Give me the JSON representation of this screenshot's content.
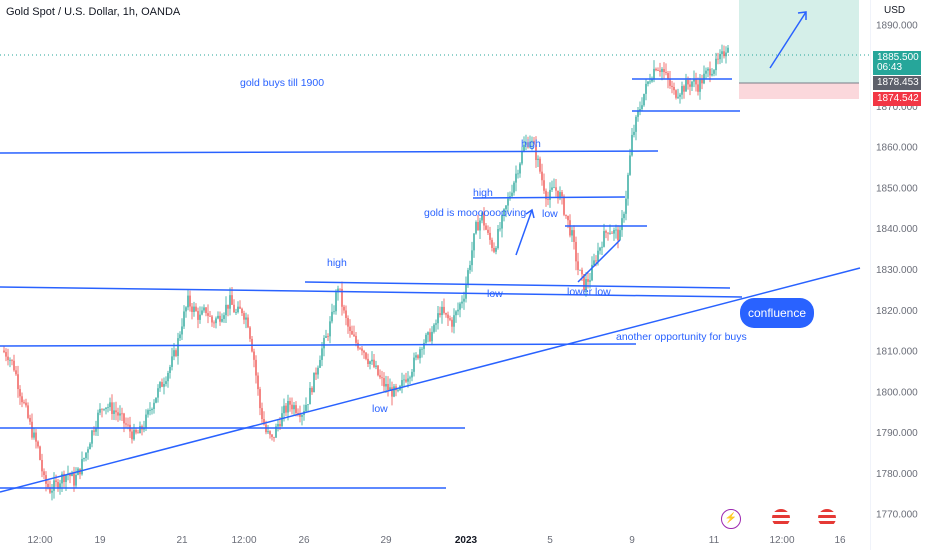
{
  "header": {
    "title": "Gold Spot / U.S. Dollar, 1h, OANDA",
    "currency": "USD"
  },
  "price_labels": {
    "last_price": "1885.500",
    "countdown": "06:43",
    "entry": "1878.453",
    "stop": "1874.542"
  },
  "callout": "confluence",
  "colors": {
    "up": "#26a69a",
    "down": "#ef5350",
    "lines": "#2962ff",
    "target_zone": "#d5efe9",
    "stop_zone": "#fbd8dc",
    "last_price_bg": "#26a69a",
    "entry_bg": "#5d606b",
    "stop_bg": "#f23645"
  },
  "events": [
    "lightning-icon",
    "us-flag-icon",
    "us-flag-icon"
  ],
  "chart_data": {
    "type": "candlestick",
    "y_ticks": [
      "1890.000",
      "1880.000",
      "1870.000",
      "1860.000",
      "1850.000",
      "1840.000",
      "1830.000",
      "1820.000",
      "1810.000",
      "1800.000",
      "1790.000",
      "1780.000",
      "1770.000"
    ],
    "ylim": [
      1766,
      1894
    ],
    "x_ticks": [
      "12:00",
      "19",
      "21",
      "12:00",
      "26",
      "29",
      "2023",
      "5",
      "9",
      "11",
      "12:00",
      "16"
    ],
    "annotations": [
      "gold buys till 1900",
      "high",
      "high",
      "high",
      "low",
      "low",
      "low",
      "lower low",
      "gold is moooooooving",
      "another opportunity for buys"
    ],
    "key_prices": [
      {
        "label": "high",
        "value": 1861
      },
      {
        "label": "high",
        "value": 1849
      },
      {
        "label": "high",
        "value": 1827
      },
      {
        "label": "low",
        "value": 1823
      },
      {
        "label": "lower low",
        "value": 1825
      }
    ],
    "path": [
      1810,
      1809,
      1806,
      1800,
      1795,
      1790,
      1786,
      1778,
      1776,
      1777,
      1779,
      1780,
      1778,
      1781,
      1785,
      1790,
      1794,
      1797,
      1796,
      1795,
      1793,
      1791,
      1789,
      1790,
      1793,
      1797,
      1800,
      1803,
      1806,
      1810,
      1817,
      1822,
      1820,
      1818,
      1820,
      1817,
      1818,
      1820,
      1822,
      1819,
      1820,
      1817,
      1808,
      1796,
      1790,
      1788,
      1792,
      1795,
      1797,
      1796,
      1795,
      1798,
      1803,
      1809,
      1813,
      1818,
      1826,
      1819,
      1814,
      1812,
      1811,
      1808,
      1806,
      1803,
      1801,
      1800,
      1799,
      1803,
      1805,
      1808,
      1812,
      1813,
      1815,
      1820,
      1818,
      1817,
      1820,
      1824,
      1832,
      1840,
      1843,
      1838,
      1835,
      1840,
      1845,
      1850,
      1855,
      1860,
      1862,
      1858,
      1852,
      1847,
      1850,
      1848,
      1843,
      1838,
      1830,
      1826,
      1828,
      1833,
      1837,
      1840,
      1839,
      1838,
      1848,
      1862,
      1868,
      1873,
      1877,
      1880,
      1879,
      1876,
      1873,
      1874,
      1875,
      1876,
      1875,
      1877,
      1879,
      1880,
      1882,
      1885.5
    ]
  }
}
